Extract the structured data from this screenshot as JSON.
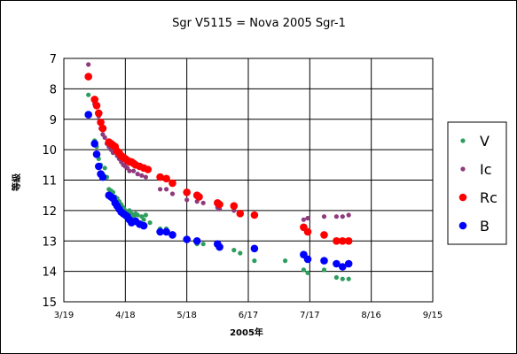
{
  "chart_data": {
    "type": "scatter",
    "title": "Sgr V5115 = Nova 2005 Sgr-1",
    "xlabel": "2005年",
    "ylabel": "等級",
    "y_inverted": true,
    "ylim": [
      7,
      15
    ],
    "yticks": [
      7,
      8,
      9,
      10,
      11,
      12,
      13,
      14,
      15
    ],
    "xticks": [
      "3/19",
      "4/18",
      "5/18",
      "6/17",
      "7/17",
      "8/16",
      "9/15"
    ],
    "xlim": [
      "2005-03-19",
      "2005-09-15"
    ],
    "grid": true,
    "legend_position": "right",
    "series": [
      {
        "name": "V",
        "color": "#2e9e5e",
        "marker": "small",
        "x": [
          "2005-03-31",
          "2005-04-03",
          "2005-04-04",
          "2005-04-05",
          "2005-04-06",
          "2005-04-07",
          "2005-04-08",
          "2005-04-09",
          "2005-04-10",
          "2005-04-11",
          "2005-04-12",
          "2005-04-13",
          "2005-04-14",
          "2005-04-15",
          "2005-04-16",
          "2005-04-17",
          "2005-04-18",
          "2005-04-19",
          "2005-04-20",
          "2005-04-21",
          "2005-04-22",
          "2005-04-23",
          "2005-04-24",
          "2005-04-26",
          "2005-04-27",
          "2005-04-28",
          "2005-04-30",
          "2005-05-05",
          "2005-05-08",
          "2005-05-11",
          "2005-05-18",
          "2005-05-23",
          "2005-05-26",
          "2005-06-02",
          "2005-06-03",
          "2005-06-10",
          "2005-06-13",
          "2005-06-20",
          "2005-07-05",
          "2005-07-14",
          "2005-07-16",
          "2005-07-24",
          "2005-07-30",
          "2005-08-02",
          "2005-08-05"
        ],
        "y": [
          8.2,
          9.7,
          9.9,
          10.3,
          10.5,
          10.8,
          10.6,
          10.9,
          11.3,
          11.35,
          11.4,
          11.55,
          11.6,
          11.7,
          11.8,
          11.9,
          12.0,
          12.05,
          12.0,
          12.1,
          12.2,
          12.1,
          12.15,
          12.2,
          12.3,
          12.15,
          12.4,
          12.6,
          12.6,
          12.75,
          12.9,
          13.1,
          13.1,
          13.15,
          13.25,
          13.3,
          13.4,
          13.65,
          13.65,
          13.95,
          14.05,
          13.95,
          14.2,
          14.25,
          14.25
        ]
      },
      {
        "name": "Ic",
        "color": "#8e3a7c",
        "marker": "small",
        "x": [
          "2005-03-31",
          "2005-04-03",
          "2005-04-05",
          "2005-04-06",
          "2005-04-07",
          "2005-04-08",
          "2005-04-09",
          "2005-04-10",
          "2005-04-11",
          "2005-04-12",
          "2005-04-14",
          "2005-04-15",
          "2005-04-16",
          "2005-04-17",
          "2005-04-18",
          "2005-04-19",
          "2005-04-20",
          "2005-04-22",
          "2005-04-24",
          "2005-04-26",
          "2005-04-28",
          "2005-05-05",
          "2005-05-08",
          "2005-05-11",
          "2005-05-18",
          "2005-05-23",
          "2005-05-26",
          "2005-06-02",
          "2005-06-03",
          "2005-06-10",
          "2005-06-13",
          "2005-06-20",
          "2005-07-14",
          "2005-07-16",
          "2005-07-24",
          "2005-07-30",
          "2005-08-02",
          "2005-08-05"
        ],
        "y": [
          7.2,
          8.5,
          8.9,
          9.3,
          9.5,
          9.6,
          9.8,
          9.9,
          10.0,
          10.1,
          10.2,
          10.3,
          10.4,
          10.5,
          10.55,
          10.6,
          10.7,
          10.7,
          10.8,
          10.85,
          10.9,
          11.3,
          11.3,
          11.45,
          11.65,
          11.7,
          11.75,
          11.9,
          11.95,
          12.0,
          12.1,
          12.15,
          12.3,
          12.25,
          12.2,
          12.2,
          12.2,
          12.15
        ]
      },
      {
        "name": "Rc",
        "color": "#ff0000",
        "marker": "large",
        "x": [
          "2005-03-31",
          "2005-04-03",
          "2005-04-04",
          "2005-04-05",
          "2005-04-06",
          "2005-04-07",
          "2005-04-10",
          "2005-04-11",
          "2005-04-12",
          "2005-04-13",
          "2005-04-14",
          "2005-04-15",
          "2005-04-16",
          "2005-04-17",
          "2005-04-18",
          "2005-04-19",
          "2005-04-20",
          "2005-04-21",
          "2005-04-22",
          "2005-04-23",
          "2005-04-25",
          "2005-04-27",
          "2005-04-29",
          "2005-05-05",
          "2005-05-08",
          "2005-05-11",
          "2005-05-18",
          "2005-05-23",
          "2005-05-24",
          "2005-06-02",
          "2005-06-03",
          "2005-06-10",
          "2005-06-13",
          "2005-06-20",
          "2005-07-14",
          "2005-07-16",
          "2005-07-24",
          "2005-07-30",
          "2005-08-02",
          "2005-08-05"
        ],
        "y": [
          7.6,
          8.35,
          8.55,
          8.8,
          9.1,
          9.3,
          9.75,
          9.8,
          9.85,
          9.9,
          10.05,
          10.1,
          10.2,
          10.25,
          10.3,
          10.35,
          10.4,
          10.4,
          10.45,
          10.5,
          10.55,
          10.6,
          10.65,
          10.9,
          10.95,
          11.1,
          11.4,
          11.5,
          11.55,
          11.75,
          11.8,
          11.85,
          12.1,
          12.15,
          12.55,
          12.7,
          12.8,
          13.0,
          13.0,
          13.0
        ]
      },
      {
        "name": "B",
        "color": "#0000ff",
        "marker": "large",
        "x": [
          "2005-03-31",
          "2005-04-03",
          "2005-04-04",
          "2005-04-05",
          "2005-04-06",
          "2005-04-07",
          "2005-04-10",
          "2005-04-11",
          "2005-04-12",
          "2005-04-13",
          "2005-04-14",
          "2005-04-15",
          "2005-04-16",
          "2005-04-17",
          "2005-04-18",
          "2005-04-19",
          "2005-04-20",
          "2005-04-21",
          "2005-04-23",
          "2005-04-25",
          "2005-04-27",
          "2005-05-05",
          "2005-05-08",
          "2005-05-11",
          "2005-05-18",
          "2005-05-23",
          "2005-06-02",
          "2005-06-03",
          "2005-06-20",
          "2005-07-14",
          "2005-07-16",
          "2005-07-24",
          "2005-07-30",
          "2005-08-02",
          "2005-08-05"
        ],
        "y": [
          8.85,
          9.8,
          10.15,
          10.55,
          10.8,
          10.9,
          11.5,
          11.55,
          11.6,
          11.75,
          11.85,
          11.95,
          12.05,
          12.1,
          12.15,
          12.2,
          12.3,
          12.4,
          12.35,
          12.45,
          12.5,
          12.7,
          12.7,
          12.8,
          12.95,
          13.0,
          13.1,
          13.2,
          13.25,
          13.45,
          13.6,
          13.65,
          13.75,
          13.85,
          13.75
        ]
      }
    ]
  }
}
